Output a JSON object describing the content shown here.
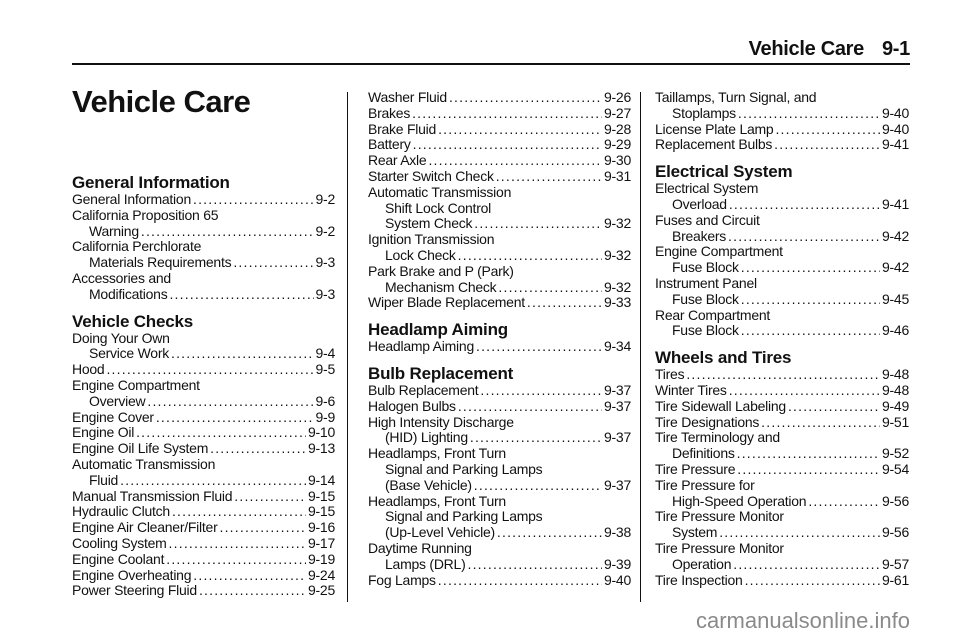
{
  "header": {
    "section": "Vehicle Care",
    "page": "9-1"
  },
  "title": "Vehicle Care",
  "columns": [
    [
      {
        "heading": "General Information"
      },
      {
        "lines": [
          "General Information"
        ],
        "page": "9-2"
      },
      {
        "lines": [
          "California Proposition 65",
          "Warning"
        ],
        "page": "9-2"
      },
      {
        "lines": [
          "California Perchlorate",
          "Materials Requirements"
        ],
        "page": "9-3"
      },
      {
        "lines": [
          "Accessories and",
          "Modifications"
        ],
        "page": "9-3"
      },
      {
        "heading": "Vehicle Checks"
      },
      {
        "lines": [
          "Doing Your Own",
          "Service Work"
        ],
        "page": "9-4"
      },
      {
        "lines": [
          "Hood"
        ],
        "page": "9-5"
      },
      {
        "lines": [
          "Engine Compartment",
          "Overview"
        ],
        "page": "9-6"
      },
      {
        "lines": [
          "Engine Cover"
        ],
        "page": "9-9"
      },
      {
        "lines": [
          "Engine Oil"
        ],
        "page": "9-10"
      },
      {
        "lines": [
          "Engine Oil Life System"
        ],
        "page": "9-13"
      },
      {
        "lines": [
          "Automatic Transmission",
          "Fluid"
        ],
        "page": "9-14"
      },
      {
        "lines": [
          "Manual Transmission Fluid"
        ],
        "page": "9-15"
      },
      {
        "lines": [
          "Hydraulic Clutch"
        ],
        "page": "9-15"
      },
      {
        "lines": [
          "Engine Air Cleaner/Filter"
        ],
        "page": "9-16"
      },
      {
        "lines": [
          "Cooling System"
        ],
        "page": "9-17"
      },
      {
        "lines": [
          "Engine Coolant"
        ],
        "page": "9-19"
      },
      {
        "lines": [
          "Engine Overheating"
        ],
        "page": "9-24"
      },
      {
        "lines": [
          "Power Steering Fluid"
        ],
        "page": "9-25"
      }
    ],
    [
      {
        "lines": [
          "Washer Fluid"
        ],
        "page": "9-26"
      },
      {
        "lines": [
          "Brakes"
        ],
        "page": "9-27"
      },
      {
        "lines": [
          "Brake Fluid"
        ],
        "page": "9-28"
      },
      {
        "lines": [
          "Battery"
        ],
        "page": "9-29"
      },
      {
        "lines": [
          "Rear Axle"
        ],
        "page": "9-30"
      },
      {
        "lines": [
          "Starter Switch Check"
        ],
        "page": "9-31"
      },
      {
        "lines": [
          "Automatic Transmission",
          "Shift Lock Control",
          "System Check"
        ],
        "page": "9-32"
      },
      {
        "lines": [
          "Ignition Transmission",
          "Lock Check"
        ],
        "page": "9-32"
      },
      {
        "lines": [
          "Park Brake and P (Park)",
          "Mechanism Check"
        ],
        "page": "9-32"
      },
      {
        "lines": [
          "Wiper Blade Replacement"
        ],
        "page": "9-33"
      },
      {
        "heading": "Headlamp Aiming"
      },
      {
        "lines": [
          "Headlamp Aiming"
        ],
        "page": "9-34"
      },
      {
        "heading": "Bulb Replacement"
      },
      {
        "lines": [
          "Bulb Replacement"
        ],
        "page": "9-37"
      },
      {
        "lines": [
          "Halogen Bulbs"
        ],
        "page": "9-37"
      },
      {
        "lines": [
          "High Intensity Discharge",
          "(HID) Lighting"
        ],
        "page": "9-37"
      },
      {
        "lines": [
          "Headlamps, Front Turn",
          "Signal and Parking Lamps",
          "(Base Vehicle)"
        ],
        "page": "9-37"
      },
      {
        "lines": [
          "Headlamps, Front Turn",
          "Signal and Parking Lamps",
          "(Up-Level Vehicle)"
        ],
        "page": "9-38"
      },
      {
        "lines": [
          "Daytime Running",
          "Lamps (DRL)"
        ],
        "page": "9-39"
      },
      {
        "lines": [
          "Fog Lamps"
        ],
        "page": "9-40"
      }
    ],
    [
      {
        "lines": [
          "Taillamps, Turn Signal, and",
          "Stoplamps"
        ],
        "page": "9-40"
      },
      {
        "lines": [
          "License Plate Lamp"
        ],
        "page": "9-40"
      },
      {
        "lines": [
          "Replacement Bulbs"
        ],
        "page": "9-41"
      },
      {
        "heading": "Electrical System"
      },
      {
        "lines": [
          "Electrical System",
          "Overload"
        ],
        "page": "9-41"
      },
      {
        "lines": [
          "Fuses and Circuit",
          "Breakers"
        ],
        "page": "9-42"
      },
      {
        "lines": [
          "Engine Compartment",
          "Fuse Block"
        ],
        "page": "9-42"
      },
      {
        "lines": [
          "Instrument Panel",
          "Fuse Block"
        ],
        "page": "9-45"
      },
      {
        "lines": [
          "Rear Compartment",
          "Fuse Block"
        ],
        "page": "9-46"
      },
      {
        "heading": "Wheels and Tires"
      },
      {
        "lines": [
          "Tires"
        ],
        "page": "9-48"
      },
      {
        "lines": [
          "Winter Tires"
        ],
        "page": "9-48"
      },
      {
        "lines": [
          "Tire Sidewall Labeling"
        ],
        "page": "9-49"
      },
      {
        "lines": [
          "Tire Designations"
        ],
        "page": "9-51"
      },
      {
        "lines": [
          "Tire Terminology and",
          "Definitions"
        ],
        "page": "9-52"
      },
      {
        "lines": [
          "Tire Pressure"
        ],
        "page": "9-54"
      },
      {
        "lines": [
          "Tire Pressure for",
          "High-Speed Operation"
        ],
        "page": "9-56"
      },
      {
        "lines": [
          "Tire Pressure Monitor",
          "System"
        ],
        "page": "9-56"
      },
      {
        "lines": [
          "Tire Pressure Monitor",
          "Operation"
        ],
        "page": "9-57"
      },
      {
        "lines": [
          "Tire Inspection"
        ],
        "page": "9-61"
      }
    ]
  ],
  "watermark": "carmanualsonline.info"
}
